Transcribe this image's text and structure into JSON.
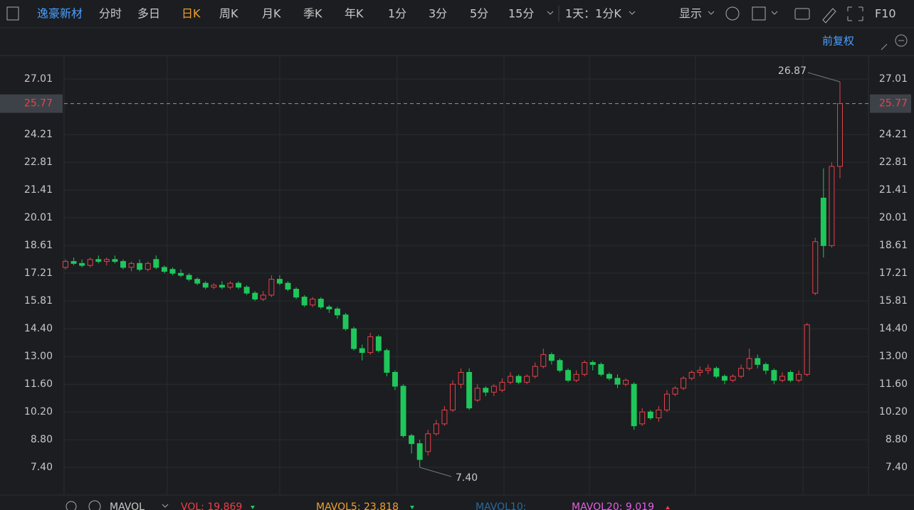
{
  "toolbar": {
    "stock": "逸豪新材",
    "tabs": [
      "分时",
      "多日",
      "日K",
      "周K",
      "月K",
      "季K",
      "年K",
      "1分",
      "3分",
      "5分",
      "15分"
    ],
    "active_tab": 2,
    "period": "1天：1分K",
    "display": "显示",
    "f10": "F10"
  },
  "adjust": "前复权",
  "indicator": {
    "name": "MAVOL",
    "items": [
      {
        "text": "VOL: 19.869",
        "color": "#e8414a"
      },
      {
        "text": "MAVOL5: 23.818",
        "color": "#f0a030"
      },
      {
        "text": "MAVOL10:",
        "color": "#2a6a9a"
      },
      {
        "text": "MAVOL20: 9.019",
        "color": "#e060e0"
      }
    ]
  },
  "chart_data": {
    "type": "candlestick",
    "open": [
      17.5,
      17.8,
      17.7,
      17.6,
      17.9,
      17.8,
      17.9,
      17.8,
      17.5,
      17.7,
      17.4,
      17.9,
      17.5,
      17.4,
      17.2,
      17.1,
      16.9,
      16.7,
      16.5,
      16.6,
      16.5,
      16.7,
      16.5,
      16.2,
      15.9,
      16.1,
      16.9,
      16.7,
      16.4,
      16.0,
      15.6,
      15.9,
      15.5,
      15.4,
      15.1,
      14.4,
      13.4,
      13.2,
      14.0,
      13.3,
      12.2,
      11.5,
      9.0,
      8.6,
      8.2,
      9.1,
      9.6,
      10.3,
      11.6,
      12.2,
      10.8,
      11.4,
      11.2,
      11.3,
      11.7,
      12.0,
      11.7,
      12.0,
      12.5,
      13.1,
      12.8,
      12.3,
      11.8,
      12.1,
      12.7,
      12.6,
      12.1,
      11.9,
      11.6,
      11.6,
      9.6,
      10.2,
      9.9,
      10.3,
      11.1,
      11.4,
      11.9,
      12.2,
      12.3,
      12.4,
      12.0,
      11.8,
      12.0,
      12.4,
      12.9,
      12.6,
      12.3,
      11.8,
      12.2,
      11.8,
      12.1,
      16.2,
      21.0,
      18.6,
      22.6
    ],
    "high": [
      17.9,
      18.0,
      17.9,
      18.0,
      18.1,
      18.0,
      18.1,
      17.9,
      17.8,
      17.9,
      17.8,
      18.1,
      17.6,
      17.5,
      17.4,
      17.2,
      17.0,
      16.8,
      16.7,
      16.8,
      16.8,
      16.8,
      16.6,
      16.3,
      16.3,
      17.1,
      17.1,
      16.8,
      16.5,
      16.1,
      16.0,
      16.0,
      15.6,
      15.5,
      15.2,
      14.5,
      13.6,
      14.2,
      14.1,
      13.4,
      12.3,
      11.6,
      9.1,
      8.8,
      9.3,
      9.8,
      10.5,
      11.8,
      12.4,
      12.4,
      11.6,
      11.5,
      11.6,
      11.9,
      12.2,
      12.1,
      12.1,
      12.7,
      13.4,
      13.2,
      12.9,
      12.4,
      12.3,
      12.8,
      12.8,
      12.7,
      12.2,
      12.1,
      11.9,
      11.7,
      10.4,
      10.3,
      10.5,
      11.3,
      11.5,
      12.0,
      12.3,
      12.5,
      12.6,
      12.5,
      12.1,
      12.1,
      12.6,
      13.4,
      13.1,
      12.7,
      12.4,
      12.2,
      12.3,
      12.3,
      14.7,
      19.0,
      22.5,
      22.8,
      26.87
    ],
    "low": [
      17.4,
      17.6,
      17.5,
      17.5,
      17.7,
      17.6,
      17.7,
      17.4,
      17.3,
      17.3,
      17.3,
      17.4,
      17.2,
      17.1,
      17.0,
      16.8,
      16.6,
      16.4,
      16.4,
      16.4,
      16.4,
      16.4,
      16.1,
      15.8,
      15.8,
      16.0,
      16.6,
      16.3,
      15.9,
      15.5,
      15.5,
      15.4,
      15.2,
      14.9,
      14.3,
      13.3,
      12.8,
      13.1,
      13.2,
      12.0,
      11.3,
      8.9,
      8.1,
      7.4,
      8.0,
      9.0,
      9.5,
      10.2,
      11.4,
      10.3,
      10.7,
      11.0,
      11.0,
      11.2,
      11.6,
      11.6,
      11.6,
      11.9,
      12.4,
      12.6,
      12.2,
      11.7,
      11.7,
      12.0,
      12.3,
      12.0,
      11.8,
      11.4,
      11.5,
      9.3,
      9.5,
      9.8,
      9.7,
      10.2,
      11.0,
      11.3,
      11.8,
      12.0,
      12.1,
      11.9,
      11.6,
      11.7,
      11.9,
      12.3,
      12.4,
      12.1,
      11.6,
      11.7,
      11.7,
      11.7,
      12.0,
      16.1,
      18.0,
      18.5,
      22.0
    ],
    "close": [
      17.8,
      17.7,
      17.6,
      17.9,
      17.8,
      17.9,
      17.8,
      17.5,
      17.7,
      17.4,
      17.7,
      17.5,
      17.3,
      17.2,
      17.1,
      16.9,
      16.7,
      16.5,
      16.6,
      16.5,
      16.7,
      16.5,
      16.2,
      15.9,
      16.1,
      16.9,
      16.7,
      16.4,
      16.0,
      15.6,
      15.9,
      15.5,
      15.4,
      15.1,
      14.4,
      13.4,
      13.2,
      14.0,
      13.3,
      12.2,
      11.5,
      9.0,
      8.6,
      7.8,
      9.1,
      9.6,
      10.3,
      11.6,
      12.2,
      10.4,
      11.4,
      11.2,
      11.5,
      11.7,
      12.0,
      11.7,
      12.0,
      12.5,
      13.1,
      12.8,
      12.3,
      11.8,
      12.1,
      12.7,
      12.6,
      12.1,
      11.9,
      11.6,
      11.8,
      9.5,
      10.2,
      9.9,
      10.3,
      11.1,
      11.4,
      11.9,
      12.2,
      12.3,
      12.4,
      12.0,
      11.8,
      12.0,
      12.4,
      12.9,
      12.6,
      12.3,
      11.8,
      12.0,
      11.8,
      12.1,
      14.6,
      18.8,
      18.6,
      22.6,
      25.77
    ],
    "up_color": "#e8414a",
    "down_color": "#1fc75a",
    "ylim": [
      6.04,
      28.2
    ],
    "yticks": [
      {
        "value": 7.4,
        "label": "7.40"
      },
      {
        "value": 8.8,
        "label": "8.80"
      },
      {
        "value": 10.2,
        "label": "10.20"
      },
      {
        "value": 11.6,
        "label": "11.60"
      },
      {
        "value": 13,
        "label": "13.00"
      },
      {
        "value": 14.4,
        "label": "14.40"
      },
      15.81,
      17.21,
      18.61,
      20.01,
      21.41,
      22.81,
      24.21,
      27.01
    ],
    "current_price": 25.77,
    "high_label": 26.87,
    "low_label": {
      "value": 7.4,
      "label": "7.40"
    },
    "grid": true
  }
}
